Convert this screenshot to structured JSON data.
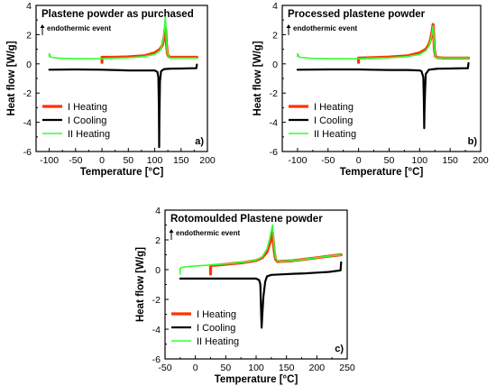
{
  "chart_data": [
    {
      "type": "line",
      "title": "Plastene  powder as purchased",
      "annotation": "endothermic event",
      "panel_label": "a)",
      "xlabel": "Temperature [°C]",
      "ylabel": "Heat flow [W/g]",
      "xlim": [
        -125,
        200
      ],
      "ylim": [
        -6,
        4
      ],
      "xticks": [
        -100,
        -50,
        0,
        50,
        100,
        150,
        200
      ],
      "yticks": [
        -6,
        -4,
        -2,
        0,
        2,
        4
      ],
      "grid": false,
      "legend": "bottom-left",
      "series": [
        {
          "name": "I  Heating",
          "color": "#ff3300",
          "x": [
            0,
            0,
            2,
            20,
            50,
            80,
            100,
            110,
            115,
            118,
            120,
            121,
            122,
            124,
            127,
            130,
            140,
            160,
            180
          ],
          "y": [
            0.1,
            0.45,
            0.45,
            0.45,
            0.48,
            0.55,
            0.75,
            1.0,
            1.3,
            1.9,
            2.5,
            2.3,
            1.5,
            0.7,
            0.48,
            0.45,
            0.45,
            0.45,
            0.45
          ]
        },
        {
          "name": "I  Cooling",
          "color": "#000000",
          "x": [
            180,
            179,
            170,
            150,
            130,
            118,
            112,
            110,
            109,
            108.5,
            108,
            107,
            105,
            100,
            80,
            50,
            20,
            0,
            -50,
            -100
          ],
          "y": [
            -0.05,
            -0.3,
            -0.3,
            -0.32,
            -0.33,
            -0.36,
            -0.5,
            -1.2,
            -3.5,
            -5.7,
            -3.0,
            -0.9,
            -0.55,
            -0.45,
            -0.45,
            -0.45,
            -0.42,
            -0.4,
            -0.38,
            -0.4
          ]
        },
        {
          "name": "II Heating",
          "color": "#33ff33",
          "x": [
            -100,
            -100,
            -97,
            -80,
            -50,
            -20,
            0,
            20,
            50,
            80,
            100,
            110,
            115,
            118,
            120,
            121,
            122,
            124,
            127,
            130,
            140,
            160,
            180
          ],
          "y": [
            0.5,
            0.7,
            0.45,
            0.38,
            0.35,
            0.35,
            0.36,
            0.38,
            0.42,
            0.5,
            0.65,
            0.9,
            1.4,
            2.2,
            3.2,
            2.8,
            1.6,
            0.75,
            0.45,
            0.4,
            0.4,
            0.4,
            0.4
          ]
        }
      ]
    },
    {
      "type": "line",
      "title": "Processed plastene  powder",
      "annotation": "endothermic event",
      "panel_label": "b)",
      "xlabel": "Temperature [°C]",
      "ylabel": "Heat flow [W/g]",
      "xlim": [
        -125,
        200
      ],
      "ylim": [
        -6,
        4
      ],
      "xticks": [
        -100,
        -50,
        0,
        50,
        100,
        150,
        200
      ],
      "yticks": [
        -6,
        -4,
        -2,
        0,
        2,
        4
      ],
      "grid": false,
      "legend": "bottom-left",
      "series": [
        {
          "name": "I  Heating",
          "color": "#ff3300",
          "x": [
            0,
            0,
            2,
            20,
            50,
            80,
            100,
            110,
            115,
            118,
            120,
            122,
            123,
            124,
            126,
            130,
            140,
            160,
            180
          ],
          "y": [
            0.1,
            0.4,
            0.4,
            0.42,
            0.47,
            0.55,
            0.75,
            1.0,
            1.3,
            1.7,
            2.1,
            2.7,
            2.0,
            1.0,
            0.5,
            0.42,
            0.4,
            0.4,
            0.4
          ]
        },
        {
          "name": "I  Cooling",
          "color": "#000000",
          "x": [
            180,
            179,
            170,
            150,
            130,
            115,
            110,
            109,
            108,
            107.5,
            107,
            106,
            103,
            100,
            80,
            50,
            20,
            0,
            -50,
            -100
          ],
          "y": [
            0.05,
            -0.3,
            -0.3,
            -0.32,
            -0.33,
            -0.4,
            -0.7,
            -1.8,
            -3.2,
            -4.4,
            -2.5,
            -0.9,
            -0.5,
            -0.45,
            -0.42,
            -0.42,
            -0.4,
            -0.38,
            -0.38,
            -0.4
          ]
        },
        {
          "name": "II Heating",
          "color": "#33ff33",
          "x": [
            -100,
            -100,
            -97,
            -80,
            -50,
            -20,
            0,
            20,
            50,
            80,
            100,
            110,
            115,
            118,
            120,
            122,
            123,
            124,
            126,
            130,
            140,
            160,
            180
          ],
          "y": [
            0.5,
            0.7,
            0.45,
            0.38,
            0.35,
            0.35,
            0.36,
            0.38,
            0.42,
            0.5,
            0.65,
            0.9,
            1.2,
            1.6,
            2.0,
            2.6,
            2.0,
            1.0,
            0.45,
            0.4,
            0.4,
            0.4,
            0.4
          ]
        }
      ]
    },
    {
      "type": "line",
      "title": "Rotomoulded  Plastene  powder",
      "annotation": "endothermic event",
      "panel_label": "c)",
      "xlabel": "Temperature [°C]",
      "ylabel": "Heat flow [W/g]",
      "xlim": [
        -50,
        250
      ],
      "ylim": [
        -6,
        4
      ],
      "xticks": [
        -50,
        0,
        50,
        100,
        150,
        200,
        250
      ],
      "yticks": [
        -6,
        -4,
        -2,
        0,
        2,
        4
      ],
      "grid": false,
      "legend": "bottom-left",
      "series": [
        {
          "name": "I  Heating",
          "color": "#ff3300",
          "x": [
            25,
            25,
            27,
            40,
            60,
            80,
            100,
            110,
            118,
            122,
            125,
            127,
            128,
            130,
            132,
            135,
            140,
            160,
            180,
            200,
            220,
            240
          ],
          "y": [
            -0.3,
            0.25,
            0.28,
            0.32,
            0.4,
            0.48,
            0.62,
            0.8,
            1.2,
            1.7,
            2.1,
            2.5,
            2.0,
            1.2,
            0.7,
            0.55,
            0.55,
            0.6,
            0.7,
            0.8,
            0.9,
            1.0
          ]
        },
        {
          "name": "I  Cooling",
          "color": "#000000",
          "x": [
            240,
            239,
            220,
            200,
            180,
            160,
            140,
            125,
            118,
            115,
            112,
            110,
            109,
            108,
            107,
            105,
            100,
            80,
            50,
            20,
            0,
            -25
          ],
          "y": [
            0.5,
            -0.05,
            -0.15,
            -0.2,
            -0.25,
            -0.28,
            -0.32,
            -0.35,
            -0.45,
            -0.8,
            -1.8,
            -3.2,
            -3.9,
            -2.5,
            -1.0,
            -0.7,
            -0.6,
            -0.6,
            -0.6,
            -0.6,
            -0.6,
            -0.6
          ]
        },
        {
          "name": "II Heating",
          "color": "#33ff33",
          "x": [
            -25,
            -25,
            -22,
            -10,
            0,
            20,
            40,
            60,
            80,
            100,
            110,
            118,
            122,
            125,
            127,
            128,
            130,
            132,
            135,
            140,
            160,
            180,
            200,
            220,
            240
          ],
          "y": [
            -0.3,
            0.1,
            0.15,
            0.22,
            0.25,
            0.3,
            0.36,
            0.42,
            0.5,
            0.65,
            0.85,
            1.4,
            2.0,
            2.6,
            3.0,
            2.4,
            1.5,
            0.8,
            0.6,
            0.55,
            0.6,
            0.7,
            0.8,
            0.9,
            1.0
          ]
        }
      ]
    }
  ]
}
